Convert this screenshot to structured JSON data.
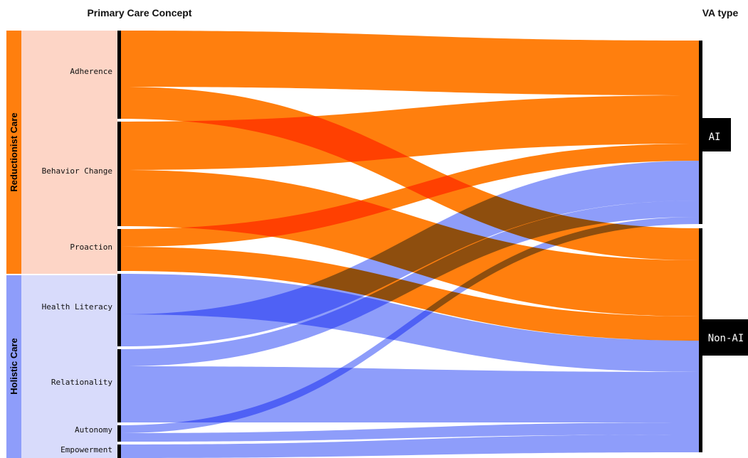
{
  "headers": {
    "left": "Primary Care Concept",
    "right": "VA type"
  },
  "categories": [
    {
      "id": "reductionist",
      "label": "Reductionist Care",
      "color": "#ff7f0e",
      "band_color": "#fdd5c6"
    },
    {
      "id": "holistic",
      "label": "Holistic Care",
      "color": "#8e9dfa",
      "band_color": "#d8dbfb"
    }
  ],
  "sources": [
    {
      "id": "adherence",
      "label": "Adherence",
      "category": "reductionist"
    },
    {
      "id": "behavior",
      "label": "Behavior Change",
      "category": "reductionist"
    },
    {
      "id": "proaction",
      "label": "Proaction",
      "category": "reductionist"
    },
    {
      "id": "literacy",
      "label": "Health Literacy",
      "category": "holistic"
    },
    {
      "id": "relationality",
      "label": "Relationality",
      "category": "holistic"
    },
    {
      "id": "autonomy",
      "label": "Autonomy",
      "category": "holistic"
    },
    {
      "id": "empowerment",
      "label": "Empowerment",
      "category": "holistic"
    }
  ],
  "targets": [
    {
      "id": "ai",
      "label": "AI"
    },
    {
      "id": "nonai",
      "label": "Non-AI"
    }
  ],
  "colors": {
    "node_bar": "#000000",
    "target_box": "#000000"
  }
}
